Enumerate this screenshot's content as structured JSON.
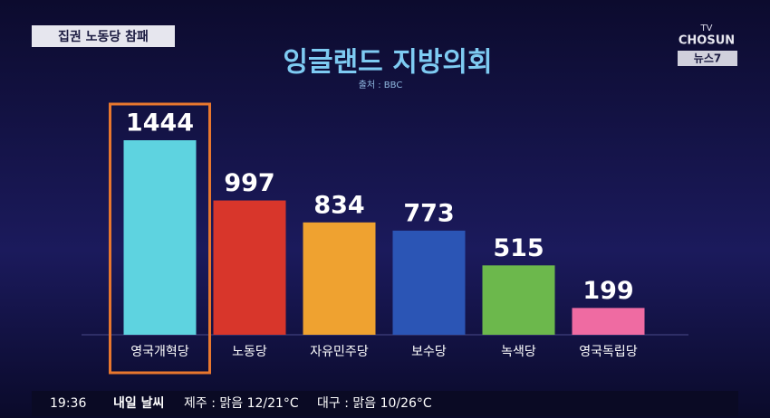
{
  "header": {
    "tag": "집권 노동당 참패"
  },
  "logo": {
    "top": "TV",
    "brand": "CHOSUN",
    "program": "뉴스7"
  },
  "chart_data": {
    "type": "bar",
    "title": "잉글랜드 지방의회",
    "subtitle": "출처 : BBC",
    "categories": [
      "영국개혁당",
      "노동당",
      "자유민주당",
      "보수당",
      "녹색당",
      "영국독립당"
    ],
    "values": [
      1444,
      997,
      834,
      773,
      515,
      199
    ],
    "colors": [
      "#5ed3e0",
      "#d8362b",
      "#efa230",
      "#2b55b5",
      "#6cb84c",
      "#ef6ba2"
    ]
  },
  "ticker": {
    "time": "19:36",
    "label": "내일 날씨",
    "items": [
      "제주 : 맑음 12/21°C",
      "대구 : 맑음 10/26°C"
    ]
  }
}
